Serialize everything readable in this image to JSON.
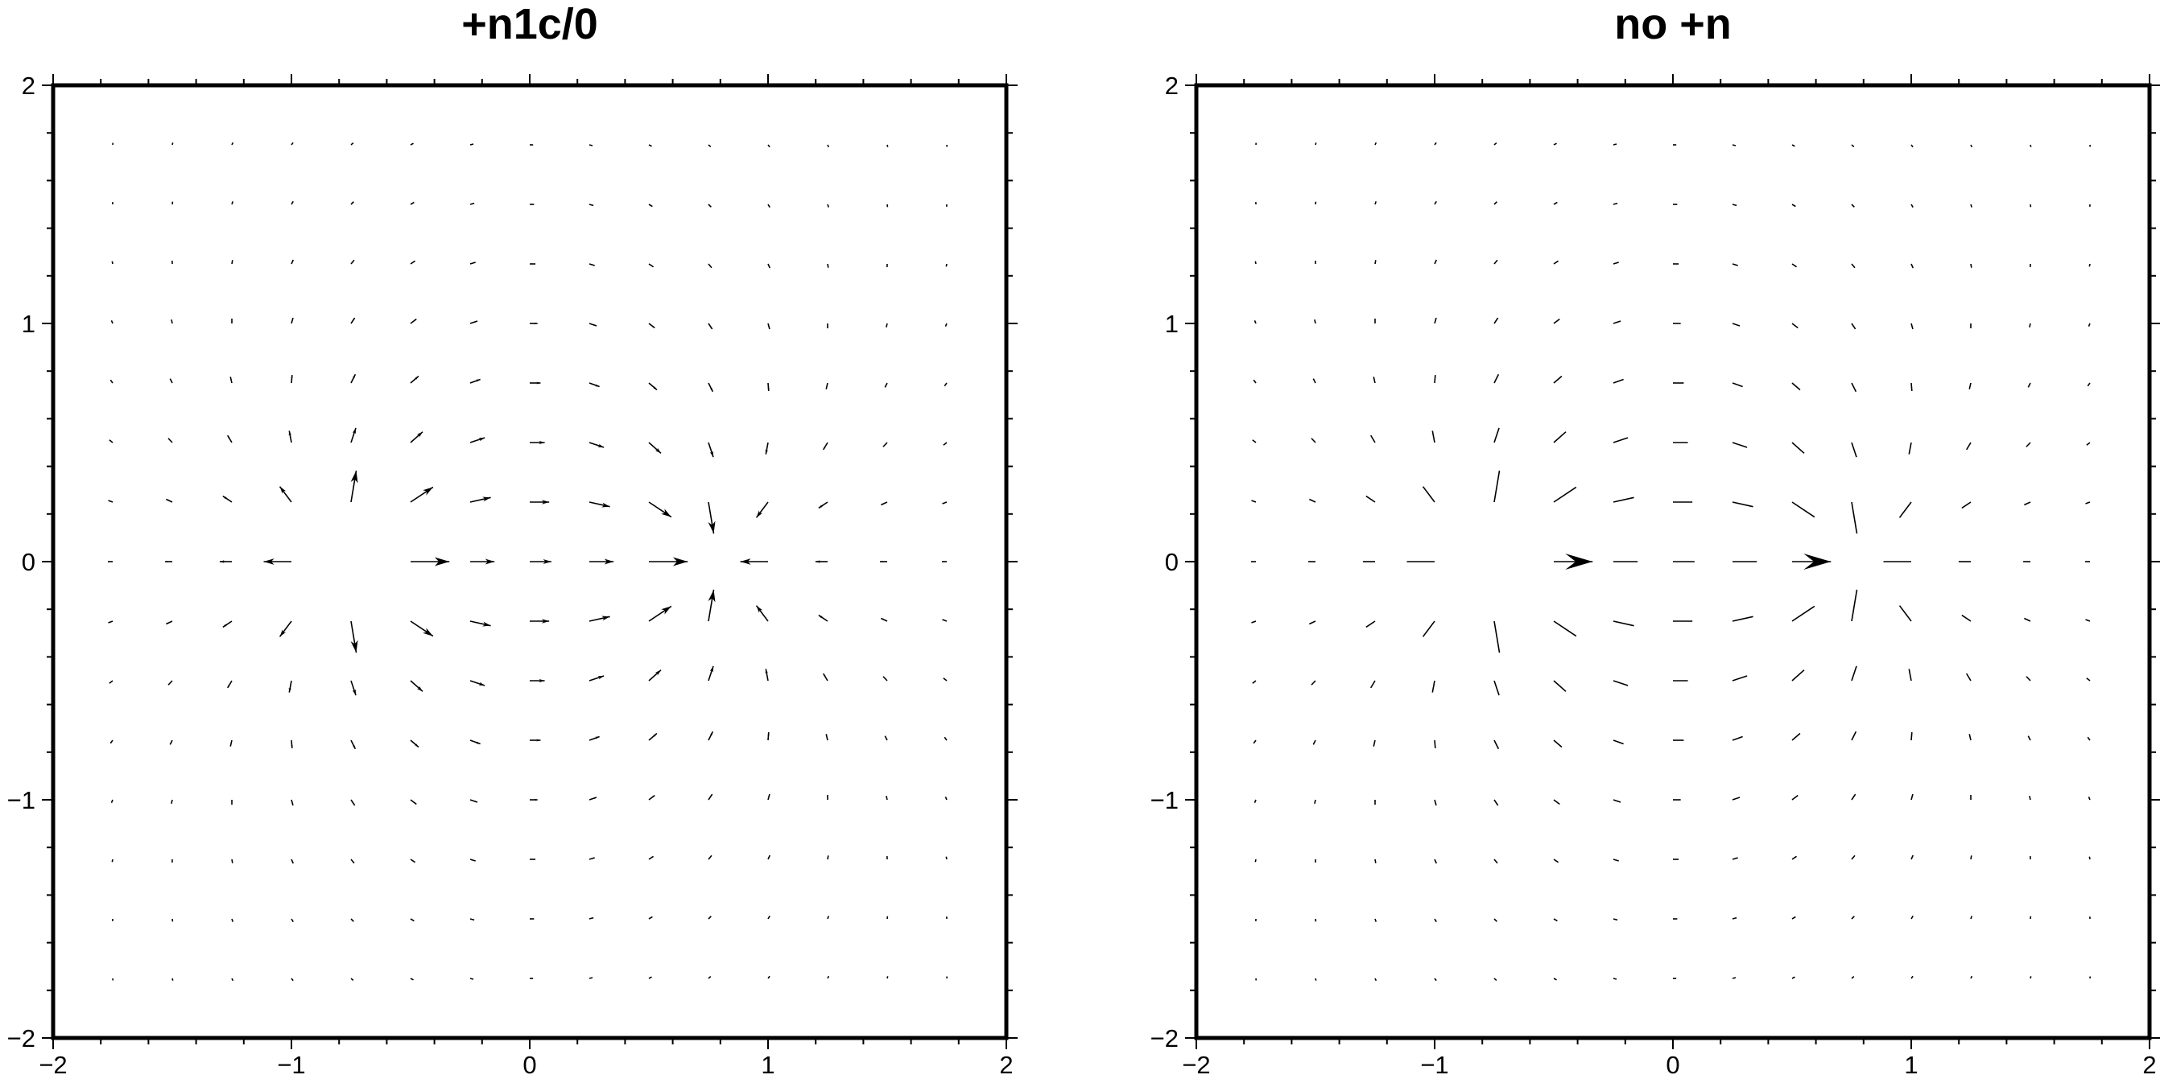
{
  "chart_data": [
    {
      "type": "quiver",
      "title": "+n1c/0",
      "xlim": [
        -2,
        2
      ],
      "ylim": [
        -2,
        2
      ],
      "xticks": [
        "−2",
        "−1",
        "0",
        "1",
        "2"
      ],
      "yticks": [
        "−2",
        "−1",
        "0",
        "1",
        "2"
      ],
      "field": "source at (-0.75, 0) and sink at (0.75, 0)",
      "grid_x": [
        -1.75,
        -1.5,
        -1.25,
        -1.0,
        -0.75,
        -0.5,
        -0.25,
        0.0,
        0.25,
        0.5,
        0.75,
        1.0,
        1.25,
        1.5,
        1.75
      ],
      "grid_y": [
        -1.75,
        -1.5,
        -1.25,
        -1.0,
        -0.75,
        -0.5,
        -0.25,
        0.0,
        0.25,
        0.5,
        0.75,
        1.0,
        1.25,
        1.5,
        1.75
      ],
      "source": [
        -0.75,
        0
      ],
      "sink": [
        0.75,
        0
      ],
      "vector_scaling": "length normalized, heads shrink to zero below threshold",
      "max_length": 0.28
    },
    {
      "type": "quiver",
      "title": "no +n",
      "xlim": [
        -2,
        2
      ],
      "ylim": [
        -2,
        2
      ],
      "xticks": [
        "−2",
        "−1",
        "0",
        "1",
        "2"
      ],
      "yticks": [
        "−2",
        "−1",
        "0",
        "1",
        "2"
      ],
      "field": "source at (-0.75, 0) and sink at (0.75, 0)",
      "grid_x": [
        -1.75,
        -1.5,
        -1.25,
        -1.0,
        -0.75,
        -0.5,
        -0.25,
        0.0,
        0.25,
        0.5,
        0.75,
        1.0,
        1.25,
        1.5,
        1.75
      ],
      "grid_y": [
        -1.75,
        -1.5,
        -1.25,
        -1.0,
        -0.75,
        -0.5,
        -0.25,
        0.0,
        0.25,
        0.5,
        0.75,
        1.0,
        1.25,
        1.5,
        1.75
      ],
      "source": [
        -0.75,
        0
      ],
      "sink": [
        0.75,
        0
      ],
      "vector_scaling": "fixed large heads, short vectors drawn as plain lines",
      "max_length": 0.28
    }
  ]
}
